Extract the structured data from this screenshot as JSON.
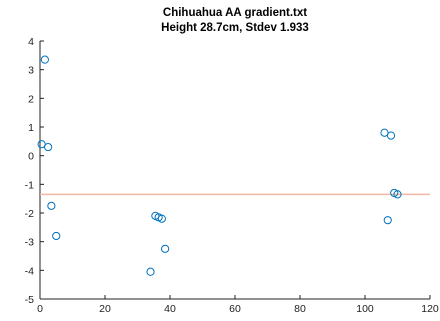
{
  "chart_data": {
    "type": "scatter",
    "title": "Chihuahua AA gradient.txt",
    "subtitle": "Height  28.7cm, Stdev 1.933",
    "xlabel": "",
    "ylabel": "",
    "xlim": [
      0,
      120
    ],
    "ylim": [
      -5,
      4
    ],
    "xticks": [
      0,
      20,
      40,
      60,
      80,
      100,
      120
    ],
    "yticks": [
      4,
      3,
      2,
      1,
      0,
      -1,
      -2,
      -3,
      -4,
      -5
    ],
    "grid": false,
    "series": [
      {
        "marker": "circle",
        "color": "#0072BD",
        "points": [
          {
            "x": 1.5,
            "y": 3.35
          },
          {
            "x": 0.5,
            "y": 0.4
          },
          {
            "x": 2.5,
            "y": 0.3
          },
          {
            "x": 3.5,
            "y": -1.75
          },
          {
            "x": 5,
            "y": -2.8
          },
          {
            "x": 34,
            "y": -4.05
          },
          {
            "x": 35.5,
            "y": -2.1
          },
          {
            "x": 36.5,
            "y": -2.15
          },
          {
            "x": 37.5,
            "y": -2.2
          },
          {
            "x": 38.5,
            "y": -3.25
          },
          {
            "x": 106,
            "y": 0.8
          },
          {
            "x": 108,
            "y": 0.7
          },
          {
            "x": 107,
            "y": -2.25
          },
          {
            "x": 109,
            "y": -1.3
          },
          {
            "x": 110,
            "y": -1.35
          }
        ]
      }
    ],
    "reference_line": {
      "y": -1.35,
      "color": "#F4B9A3"
    }
  }
}
